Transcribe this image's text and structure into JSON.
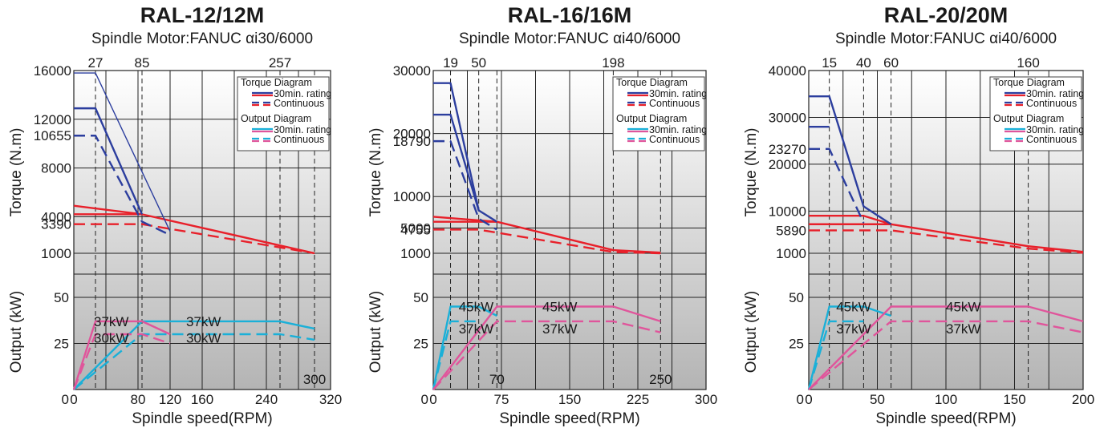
{
  "chart_data": [
    {
      "type": "line",
      "title": "RAL-12/12M",
      "subtitle": "Spindle Motor:FANUC αi30/6000",
      "xlabel": "Spindle speed(RPM)",
      "torque_ylabel": "Torque  (N.m)",
      "output_ylabel": "Output  (kW)",
      "xlim": [
        0,
        320
      ],
      "x_ticks": [
        0,
        80,
        120,
        160,
        240,
        320
      ],
      "torque_ylim": [
        0,
        16000
      ],
      "torque_ticks": [
        1000,
        4000,
        8000,
        12000,
        16000
      ],
      "torque_extra_ticks": [
        10655,
        3390
      ],
      "output_ticks": [
        25,
        50
      ],
      "top_speed_labels": [
        27,
        85,
        257
      ],
      "bottom_speed_label": "300",
      "speed_markers": [
        27,
        85,
        257,
        300
      ],
      "output_annotations": [
        {
          "text": "37kW",
          "x": 25,
          "y": 37
        },
        {
          "text": "37kW",
          "x": 140,
          "y": 37
        },
        {
          "text": "30kW",
          "x": 25,
          "y": 28
        },
        {
          "text": "30kW",
          "x": 140,
          "y": 28
        }
      ],
      "legend": {
        "torque_title": "Torque Diagram",
        "output_title": "Output Diagram",
        "rating_30min": "30min. rating",
        "continuous": "Continuous"
      },
      "series": [
        {
          "group": "torque",
          "kind": "30min-spindle",
          "color": "#e8202a",
          "dash": false,
          "x": [
            0,
            85,
            300
          ],
          "y": [
            4900,
            4200,
            1000
          ]
        },
        {
          "group": "torque",
          "kind": "continuous-spindle",
          "color": "#e8202a",
          "dash": true,
          "x": [
            0,
            85,
            300
          ],
          "y": [
            3390,
            3390,
            950
          ]
        },
        {
          "group": "torque",
          "kind": "30min-extra",
          "color": "#e8202a",
          "dash": false,
          "x": [
            0,
            85
          ],
          "y": [
            4200,
            4200
          ]
        },
        {
          "group": "torque",
          "kind": "30min-low",
          "color": "#2c3e9e",
          "dash": false,
          "x": [
            0,
            27,
            85
          ],
          "y": [
            12900,
            12900,
            4200
          ]
        },
        {
          "group": "torque",
          "kind": "continuous-low",
          "color": "#2c3e9e",
          "dash": true,
          "x": [
            0,
            27,
            85,
            120
          ],
          "y": [
            10655,
            10655,
            3600,
            2500
          ]
        },
        {
          "group": "torque",
          "kind": "30min-low-peak",
          "color": "#2c3e9e",
          "dash": false,
          "thin": true,
          "x": [
            0,
            27,
            120
          ],
          "y": [
            15800,
            15800,
            2800
          ]
        },
        {
          "group": "output",
          "kind": "30min-spindle",
          "color": "#1ab0d8",
          "dash": false,
          "x": [
            0,
            85,
            257,
            300
          ],
          "y": [
            0,
            37,
            37,
            33
          ]
        },
        {
          "group": "output",
          "kind": "continuous-spindle",
          "color": "#1ab0d8",
          "dash": true,
          "x": [
            0,
            85,
            257,
            300
          ],
          "y": [
            0,
            30,
            30,
            27
          ]
        },
        {
          "group": "output",
          "kind": "30min-low",
          "color": "#e0559b",
          "dash": false,
          "x": [
            0,
            27,
            85,
            120
          ],
          "y": [
            0,
            37,
            37,
            30
          ]
        },
        {
          "group": "output",
          "kind": "continuous-low",
          "color": "#e0559b",
          "dash": true,
          "x": [
            0,
            27,
            85,
            120
          ],
          "y": [
            0,
            30,
            30,
            25
          ]
        }
      ]
    },
    {
      "type": "line",
      "title": "RAL-16/16M",
      "subtitle": "Spindle Motor:FANUC αi40/6000",
      "xlabel": "Spindle speed(RPM)",
      "torque_ylabel": "Torque  (N.m)",
      "output_ylabel": "Output  (kW)",
      "xlim": [
        0,
        300
      ],
      "x_ticks": [
        0,
        75,
        150,
        225,
        300
      ],
      "torque_ylim": [
        0,
        30000
      ],
      "torque_ticks": [
        1000,
        5000,
        10000,
        20000,
        30000
      ],
      "torque_extra_ticks": [
        18790,
        4755
      ],
      "output_ticks": [
        25,
        50
      ],
      "top_speed_labels": [
        19,
        50,
        198
      ],
      "bottom_speed_label": "250",
      "bottom_speed_label_2": "70",
      "speed_markers": [
        19,
        50,
        70,
        198,
        250
      ],
      "output_annotations": [
        {
          "text": "45kW",
          "x": 28,
          "y": 45
        },
        {
          "text": "45kW",
          "x": 120,
          "y": 45
        },
        {
          "text": "37kW",
          "x": 28,
          "y": 33
        },
        {
          "text": "37kW",
          "x": 120,
          "y": 33
        }
      ],
      "legend": {
        "torque_title": "Torque Diagram",
        "output_title": "Output Diagram",
        "rating_30min": "30min. rating",
        "continuous": "Continuous"
      },
      "series": [
        {
          "group": "torque",
          "kind": "30min-spindle",
          "color": "#e8202a",
          "dash": false,
          "x": [
            0,
            70,
            198,
            250
          ],
          "y": [
            6800,
            6000,
            1500,
            1100
          ]
        },
        {
          "group": "torque",
          "kind": "30min-extra",
          "color": "#e8202a",
          "dash": false,
          "x": [
            0,
            70
          ],
          "y": [
            6000,
            6000
          ]
        },
        {
          "group": "torque",
          "kind": "continuous-spindle",
          "color": "#e8202a",
          "dash": true,
          "x": [
            0,
            50,
            198,
            250
          ],
          "y": [
            4755,
            4755,
            1200,
            1000
          ]
        },
        {
          "group": "torque",
          "kind": "30min-low",
          "color": "#2c3e9e",
          "dash": false,
          "x": [
            0,
            19,
            50,
            70
          ],
          "y": [
            28000,
            28000,
            7800,
            6000
          ]
        },
        {
          "group": "torque",
          "kind": "30min-low-2",
          "color": "#2c3e9e",
          "dash": false,
          "x": [
            0,
            19,
            50
          ],
          "y": [
            23000,
            23000,
            7800
          ]
        },
        {
          "group": "torque",
          "kind": "continuous-low",
          "color": "#2c3e9e",
          "dash": true,
          "x": [
            0,
            19,
            50,
            70
          ],
          "y": [
            18790,
            18790,
            6500,
            4755
          ]
        },
        {
          "group": "output",
          "kind": "30min-spindle",
          "color": "#1ab0d8",
          "dash": false,
          "x": [
            0,
            19,
            50,
            70
          ],
          "y": [
            0,
            45,
            45,
            40
          ]
        },
        {
          "group": "output",
          "kind": "continuous-spindle",
          "color": "#1ab0d8",
          "dash": true,
          "x": [
            0,
            19,
            50
          ],
          "y": [
            0,
            37,
            37
          ]
        },
        {
          "group": "output",
          "kind": "30min-low",
          "color": "#e0559b",
          "dash": false,
          "x": [
            0,
            70,
            198,
            250
          ],
          "y": [
            0,
            45,
            45,
            37
          ]
        },
        {
          "group": "output",
          "kind": "continuous-low",
          "color": "#e0559b",
          "dash": true,
          "x": [
            0,
            70,
            198,
            250
          ],
          "y": [
            0,
            37,
            37,
            31
          ]
        }
      ]
    },
    {
      "type": "line",
      "title": "RAL-20/20M",
      "subtitle": "Spindle Motor:FANUC αi40/6000",
      "xlabel": "Spindle speed(RPM)",
      "torque_ylabel": "Torque  (N.m)",
      "output_ylabel": "Output  (kW)",
      "xlim": [
        0,
        200
      ],
      "x_ticks": [
        0,
        50,
        100,
        150,
        200
      ],
      "torque_ylim": [
        0,
        40000
      ],
      "torque_ticks": [
        1000,
        10000,
        20000,
        30000,
        40000
      ],
      "torque_extra_ticks": [
        23270,
        5890
      ],
      "output_ticks": [
        25,
        50
      ],
      "top_speed_labels": [
        15,
        40,
        60,
        160
      ],
      "speed_markers": [
        15,
        40,
        60,
        160
      ],
      "output_annotations": [
        {
          "text": "45kW",
          "x": 20,
          "y": 45
        },
        {
          "text": "45kW",
          "x": 100,
          "y": 45
        },
        {
          "text": "37kW",
          "x": 20,
          "y": 33
        },
        {
          "text": "37kW",
          "x": 100,
          "y": 33
        }
      ],
      "legend": {
        "torque_title": "Torque Diagram",
        "output_title": "Output Diagram",
        "rating_30min": "30min. rating",
        "continuous": "Continuous"
      },
      "series": [
        {
          "group": "torque",
          "kind": "30min-spindle",
          "color": "#e8202a",
          "dash": false,
          "x": [
            0,
            40,
            60,
            160,
            200
          ],
          "y": [
            9000,
            9000,
            7200,
            2500,
            1300
          ]
        },
        {
          "group": "torque",
          "kind": "30min-extra",
          "color": "#e8202a",
          "dash": false,
          "x": [
            0,
            60
          ],
          "y": [
            7200,
            7200
          ]
        },
        {
          "group": "torque",
          "kind": "continuous-spindle",
          "color": "#e8202a",
          "dash": true,
          "x": [
            0,
            60,
            160,
            200
          ],
          "y": [
            5890,
            5890,
            2000,
            1100
          ]
        },
        {
          "group": "torque",
          "kind": "30min-low",
          "color": "#2c3e9e",
          "dash": false,
          "x": [
            0,
            15,
            40,
            60
          ],
          "y": [
            34500,
            34500,
            11000,
            7200
          ]
        },
        {
          "group": "torque",
          "kind": "30min-low-2",
          "color": "#2c3e9e",
          "dash": false,
          "x": [
            0,
            15
          ],
          "y": [
            28000,
            28000
          ]
        },
        {
          "group": "torque",
          "kind": "continuous-low",
          "color": "#2c3e9e",
          "dash": true,
          "x": [
            0,
            15,
            40
          ],
          "y": [
            23270,
            23270,
            7500
          ]
        },
        {
          "group": "output",
          "kind": "30min-spindle",
          "color": "#1ab0d8",
          "dash": false,
          "x": [
            0,
            15,
            40,
            60
          ],
          "y": [
            0,
            45,
            45,
            40
          ]
        },
        {
          "group": "output",
          "kind": "continuous-spindle",
          "color": "#1ab0d8",
          "dash": true,
          "x": [
            0,
            15,
            40
          ],
          "y": [
            0,
            37,
            37
          ]
        },
        {
          "group": "output",
          "kind": "30min-low",
          "color": "#e0559b",
          "dash": false,
          "x": [
            0,
            60,
            160,
            200
          ],
          "y": [
            0,
            45,
            45,
            37
          ]
        },
        {
          "group": "output",
          "kind": "continuous-low",
          "color": "#e0559b",
          "dash": true,
          "x": [
            0,
            60,
            160,
            200
          ],
          "y": [
            0,
            37,
            37,
            31
          ]
        }
      ]
    }
  ]
}
